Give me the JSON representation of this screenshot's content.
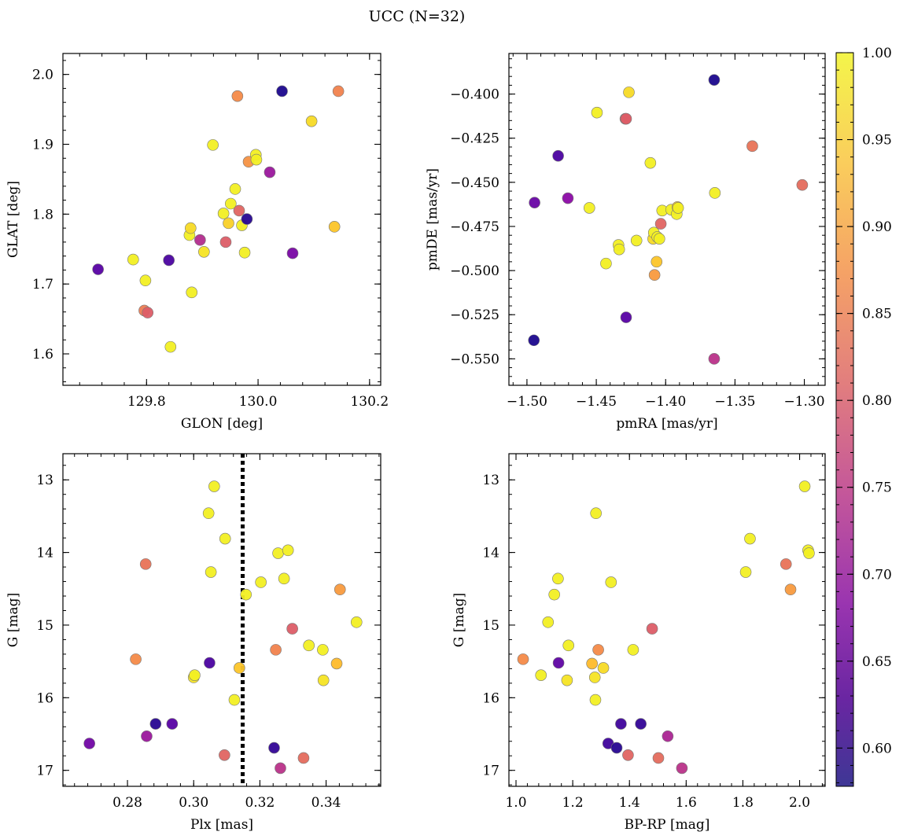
{
  "title": "UCC (N=32)",
  "colorbar": {
    "range": [
      0.578,
      1.0
    ],
    "ticks": [
      0.6,
      0.65,
      0.7,
      0.75,
      0.8,
      0.85,
      0.9,
      0.95,
      1.0
    ],
    "colormap": "plasma"
  },
  "chart_data": [
    {
      "type": "scatter",
      "xlabel": "GLON [deg]",
      "ylabel": "GLAT [deg]",
      "xlim": [
        129.65,
        130.22
      ],
      "ylim": [
        1.555,
        2.03
      ],
      "xticks": [
        129.8,
        130.0,
        130.2
      ],
      "yticks": [
        1.6,
        1.7,
        1.8,
        1.9,
        2.0
      ],
      "points": [
        {
          "x": 129.713,
          "y": 1.721,
          "p": 0.64
        },
        {
          "x": 129.776,
          "y": 1.735,
          "p": 0.99
        },
        {
          "x": 129.796,
          "y": 1.662,
          "p": 0.86
        },
        {
          "x": 129.798,
          "y": 1.705,
          "p": 0.99
        },
        {
          "x": 129.802,
          "y": 1.659,
          "p": 0.82
        },
        {
          "x": 129.84,
          "y": 1.734,
          "p": 0.63
        },
        {
          "x": 129.843,
          "y": 1.61,
          "p": 0.99
        },
        {
          "x": 129.877,
          "y": 1.77,
          "p": 0.99
        },
        {
          "x": 129.879,
          "y": 1.78,
          "p": 0.97
        },
        {
          "x": 129.881,
          "y": 1.688,
          "p": 0.99
        },
        {
          "x": 129.896,
          "y": 1.763,
          "p": 0.75
        },
        {
          "x": 129.903,
          "y": 1.746,
          "p": 0.98
        },
        {
          "x": 129.919,
          "y": 1.899,
          "p": 0.99
        },
        {
          "x": 129.938,
          "y": 1.801,
          "p": 0.99
        },
        {
          "x": 129.942,
          "y": 1.76,
          "p": 0.82
        },
        {
          "x": 129.947,
          "y": 1.787,
          "p": 0.96
        },
        {
          "x": 129.951,
          "y": 1.815,
          "p": 0.99
        },
        {
          "x": 129.959,
          "y": 1.836,
          "p": 0.99
        },
        {
          "x": 129.963,
          "y": 1.969,
          "p": 0.88
        },
        {
          "x": 129.966,
          "y": 1.805,
          "p": 0.83
        },
        {
          "x": 129.971,
          "y": 1.784,
          "p": 0.99
        },
        {
          "x": 129.976,
          "y": 1.745,
          "p": 0.99
        },
        {
          "x": 129.98,
          "y": 1.793,
          "p": 0.6
        },
        {
          "x": 129.983,
          "y": 1.875,
          "p": 0.89
        },
        {
          "x": 129.996,
          "y": 1.885,
          "p": 0.99
        },
        {
          "x": 129.997,
          "y": 1.878,
          "p": 0.99
        },
        {
          "x": 130.021,
          "y": 1.86,
          "p": 0.72
        },
        {
          "x": 130.043,
          "y": 1.976,
          "p": 0.59
        },
        {
          "x": 130.062,
          "y": 1.744,
          "p": 0.68
        },
        {
          "x": 130.096,
          "y": 1.933,
          "p": 0.97
        },
        {
          "x": 130.137,
          "y": 1.782,
          "p": 0.95
        },
        {
          "x": 130.144,
          "y": 1.976,
          "p": 0.87
        }
      ]
    },
    {
      "type": "scatter",
      "xlabel": "pmRA [mas/yr]",
      "ylabel": "pmDE [mas/yr]",
      "xlim": [
        -1.513,
        -1.285
      ],
      "ylim": [
        -0.565,
        -0.377
      ],
      "xticks": [
        -1.5,
        -1.45,
        -1.4,
        -1.35,
        -1.3
      ],
      "yticks": [
        -0.4,
        -0.425,
        -0.45,
        -0.475,
        -0.5,
        -0.525,
        -0.55
      ],
      "points": [
        {
          "x": -1.495,
          "y": -0.5395,
          "p": 0.59
        },
        {
          "x": -1.4945,
          "y": -0.4615,
          "p": 0.66
        },
        {
          "x": -1.4775,
          "y": -0.435,
          "p": 0.63
        },
        {
          "x": -1.4705,
          "y": -0.459,
          "p": 0.7
        },
        {
          "x": -1.455,
          "y": -0.4645,
          "p": 0.99
        },
        {
          "x": -1.4495,
          "y": -0.4105,
          "p": 0.99
        },
        {
          "x": -1.443,
          "y": -0.496,
          "p": 0.99
        },
        {
          "x": -1.434,
          "y": -0.4855,
          "p": 0.99
        },
        {
          "x": -1.4335,
          "y": -0.488,
          "p": 0.99
        },
        {
          "x": -1.429,
          "y": -0.414,
          "p": 0.83
        },
        {
          "x": -1.4285,
          "y": -0.5265,
          "p": 0.64
        },
        {
          "x": -1.4265,
          "y": -0.399,
          "p": 0.97
        },
        {
          "x": -1.421,
          "y": -0.483,
          "p": 0.99
        },
        {
          "x": -1.411,
          "y": -0.439,
          "p": 0.99
        },
        {
          "x": -1.409,
          "y": -0.482,
          "p": 0.97
        },
        {
          "x": -1.4085,
          "y": -0.4785,
          "p": 0.99
        },
        {
          "x": -1.408,
          "y": -0.5025,
          "p": 0.9
        },
        {
          "x": -1.4065,
          "y": -0.495,
          "p": 0.95
        },
        {
          "x": -1.406,
          "y": -0.481,
          "p": 0.99
        },
        {
          "x": -1.4045,
          "y": -0.482,
          "p": 0.99
        },
        {
          "x": -1.4035,
          "y": -0.4735,
          "p": 0.83
        },
        {
          "x": -1.4025,
          "y": -0.466,
          "p": 0.99
        },
        {
          "x": -1.396,
          "y": -0.4655,
          "p": 0.99
        },
        {
          "x": -1.392,
          "y": -0.468,
          "p": 0.99
        },
        {
          "x": -1.3915,
          "y": -0.464,
          "p": 0.95
        },
        {
          "x": -1.391,
          "y": -0.4645,
          "p": 0.99
        },
        {
          "x": -1.365,
          "y": -0.392,
          "p": 0.59
        },
        {
          "x": -1.365,
          "y": -0.55,
          "p": 0.76
        },
        {
          "x": -1.3645,
          "y": -0.456,
          "p": 0.99
        },
        {
          "x": -1.3375,
          "y": -0.4295,
          "p": 0.85
        },
        {
          "x": -1.3015,
          "y": -0.4515,
          "p": 0.84
        },
        {
          "x": -1.4285,
          "y": -0.414,
          "p": 0.82
        }
      ]
    },
    {
      "type": "scatter",
      "xlabel": "Plx [mas]",
      "ylabel": "G [mag]",
      "xlim": [
        0.2605,
        0.3565
      ],
      "ylim": [
        17.22,
        12.64
      ],
      "xticks": [
        0.28,
        0.3,
        0.32,
        0.34
      ],
      "yticks": [
        13,
        14,
        15,
        16,
        17
      ],
      "vline": 0.3148,
      "points": [
        {
          "x": 0.2685,
          "y": 16.63,
          "p": 0.67
        },
        {
          "x": 0.2825,
          "y": 15.47,
          "p": 0.88
        },
        {
          "x": 0.2855,
          "y": 14.16,
          "p": 0.85
        },
        {
          "x": 0.2858,
          "y": 16.53,
          "p": 0.72
        },
        {
          "x": 0.2885,
          "y": 16.36,
          "p": 0.6
        },
        {
          "x": 0.2935,
          "y": 16.36,
          "p": 0.64
        },
        {
          "x": 0.3,
          "y": 15.72,
          "p": 0.98
        },
        {
          "x": 0.3003,
          "y": 15.69,
          "p": 0.99
        },
        {
          "x": 0.3045,
          "y": 13.46,
          "p": 0.99
        },
        {
          "x": 0.3048,
          "y": 15.52,
          "p": 0.63
        },
        {
          "x": 0.3052,
          "y": 14.27,
          "p": 0.99
        },
        {
          "x": 0.3062,
          "y": 13.09,
          "p": 0.99
        },
        {
          "x": 0.3093,
          "y": 16.79,
          "p": 0.83
        },
        {
          "x": 0.3095,
          "y": 13.81,
          "p": 0.99
        },
        {
          "x": 0.3123,
          "y": 16.03,
          "p": 0.99
        },
        {
          "x": 0.3138,
          "y": 15.59,
          "p": 0.95
        },
        {
          "x": 0.3158,
          "y": 14.58,
          "p": 0.99
        },
        {
          "x": 0.3203,
          "y": 14.41,
          "p": 0.99
        },
        {
          "x": 0.3243,
          "y": 16.69,
          "p": 0.61
        },
        {
          "x": 0.3248,
          "y": 15.34,
          "p": 0.87
        },
        {
          "x": 0.3255,
          "y": 14.01,
          "p": 0.99
        },
        {
          "x": 0.3262,
          "y": 16.97,
          "p": 0.76
        },
        {
          "x": 0.3273,
          "y": 14.36,
          "p": 0.99
        },
        {
          "x": 0.3285,
          "y": 13.97,
          "p": 0.99
        },
        {
          "x": 0.3298,
          "y": 15.05,
          "p": 0.82
        },
        {
          "x": 0.3332,
          "y": 16.83,
          "p": 0.84
        },
        {
          "x": 0.3348,
          "y": 15.28,
          "p": 0.99
        },
        {
          "x": 0.339,
          "y": 15.34,
          "p": 0.99
        },
        {
          "x": 0.3392,
          "y": 15.76,
          "p": 0.98
        },
        {
          "x": 0.3432,
          "y": 15.53,
          "p": 0.94
        },
        {
          "x": 0.3442,
          "y": 14.51,
          "p": 0.9
        },
        {
          "x": 0.3492,
          "y": 14.96,
          "p": 0.99
        }
      ]
    },
    {
      "type": "scatter",
      "xlabel": "BP-RP [mag]",
      "ylabel": "G [mag]",
      "xlim": [
        0.975,
        2.09
      ],
      "ylim": [
        17.22,
        12.64
      ],
      "xticks": [
        1.0,
        1.2,
        1.4,
        1.6,
        1.8,
        2.0
      ],
      "yticks": [
        13,
        14,
        15,
        16,
        17
      ],
      "points": [
        {
          "x": 1.025,
          "y": 15.47,
          "p": 0.88
        },
        {
          "x": 1.088,
          "y": 15.69,
          "p": 0.99
        },
        {
          "x": 1.113,
          "y": 14.96,
          "p": 0.99
        },
        {
          "x": 1.135,
          "y": 14.58,
          "p": 0.99
        },
        {
          "x": 1.148,
          "y": 14.36,
          "p": 0.99
        },
        {
          "x": 1.15,
          "y": 15.52,
          "p": 0.65
        },
        {
          "x": 1.18,
          "y": 15.76,
          "p": 0.98
        },
        {
          "x": 1.185,
          "y": 15.28,
          "p": 0.99
        },
        {
          "x": 1.268,
          "y": 15.53,
          "p": 0.94
        },
        {
          "x": 1.278,
          "y": 15.72,
          "p": 0.98
        },
        {
          "x": 1.28,
          "y": 16.03,
          "p": 0.99
        },
        {
          "x": 1.282,
          "y": 13.46,
          "p": 0.99
        },
        {
          "x": 1.29,
          "y": 15.34,
          "p": 0.88
        },
        {
          "x": 1.308,
          "y": 15.59,
          "p": 0.97
        },
        {
          "x": 1.325,
          "y": 16.63,
          "p": 0.62
        },
        {
          "x": 1.335,
          "y": 14.41,
          "p": 0.99
        },
        {
          "x": 1.355,
          "y": 16.69,
          "p": 0.6
        },
        {
          "x": 1.37,
          "y": 16.36,
          "p": 0.62
        },
        {
          "x": 1.395,
          "y": 16.79,
          "p": 0.83
        },
        {
          "x": 1.413,
          "y": 15.34,
          "p": 0.99
        },
        {
          "x": 1.44,
          "y": 16.36,
          "p": 0.61
        },
        {
          "x": 1.48,
          "y": 15.05,
          "p": 0.82
        },
        {
          "x": 1.502,
          "y": 16.83,
          "p": 0.84
        },
        {
          "x": 1.535,
          "y": 16.53,
          "p": 0.74
        },
        {
          "x": 1.585,
          "y": 16.97,
          "p": 0.76
        },
        {
          "x": 1.81,
          "y": 14.27,
          "p": 0.99
        },
        {
          "x": 1.825,
          "y": 13.81,
          "p": 0.99
        },
        {
          "x": 1.952,
          "y": 14.16,
          "p": 0.85
        },
        {
          "x": 1.968,
          "y": 14.51,
          "p": 0.9
        },
        {
          "x": 2.018,
          "y": 13.09,
          "p": 0.99
        },
        {
          "x": 2.03,
          "y": 13.97,
          "p": 0.99
        },
        {
          "x": 2.033,
          "y": 14.01,
          "p": 0.99
        }
      ]
    }
  ]
}
